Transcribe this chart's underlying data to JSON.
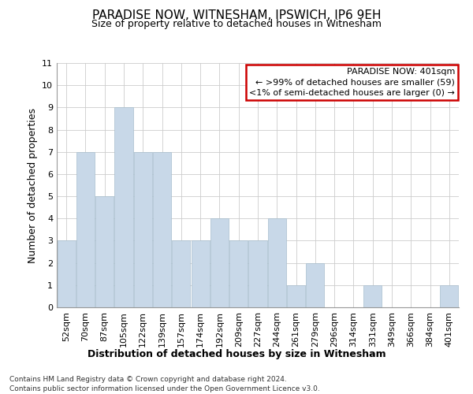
{
  "title": "PARADISE NOW, WITNESHAM, IPSWICH, IP6 9EH",
  "subtitle": "Size of property relative to detached houses in Witnesham",
  "xlabel_bottom": "Distribution of detached houses by size in Witnesham",
  "ylabel": "Number of detached properties",
  "categories": [
    "52sqm",
    "70sqm",
    "87sqm",
    "105sqm",
    "122sqm",
    "139sqm",
    "157sqm",
    "174sqm",
    "192sqm",
    "209sqm",
    "227sqm",
    "244sqm",
    "261sqm",
    "279sqm",
    "296sqm",
    "314sqm",
    "331sqm",
    "349sqm",
    "366sqm",
    "384sqm",
    "401sqm"
  ],
  "values": [
    3,
    7,
    5,
    9,
    7,
    7,
    3,
    3,
    4,
    3,
    3,
    4,
    1,
    2,
    0,
    0,
    1,
    0,
    0,
    0,
    1
  ],
  "bar_color": "#c8d8e8",
  "bar_edgecolor": "#a8bece",
  "ylim": [
    0,
    11
  ],
  "yticks": [
    0,
    1,
    2,
    3,
    4,
    5,
    6,
    7,
    8,
    9,
    10,
    11
  ],
  "legend_title": "PARADISE NOW: 401sqm",
  "legend_line1": "← >99% of detached houses are smaller (59)",
  "legend_line2": "<1% of semi-detached houses are larger (0) →",
  "legend_box_color": "#ffffff",
  "legend_box_edgecolor": "#cc0000",
  "footer_line1": "Contains HM Land Registry data © Crown copyright and database right 2024.",
  "footer_line2": "Contains public sector information licensed under the Open Government Licence v3.0.",
  "background_color": "#ffffff",
  "grid_color": "#cccccc",
  "title_fontsize": 11,
  "subtitle_fontsize": 9,
  "ylabel_fontsize": 9,
  "tick_fontsize": 8,
  "legend_fontsize": 8,
  "footer_fontsize": 6.5,
  "xlabel_bottom_fontsize": 9
}
